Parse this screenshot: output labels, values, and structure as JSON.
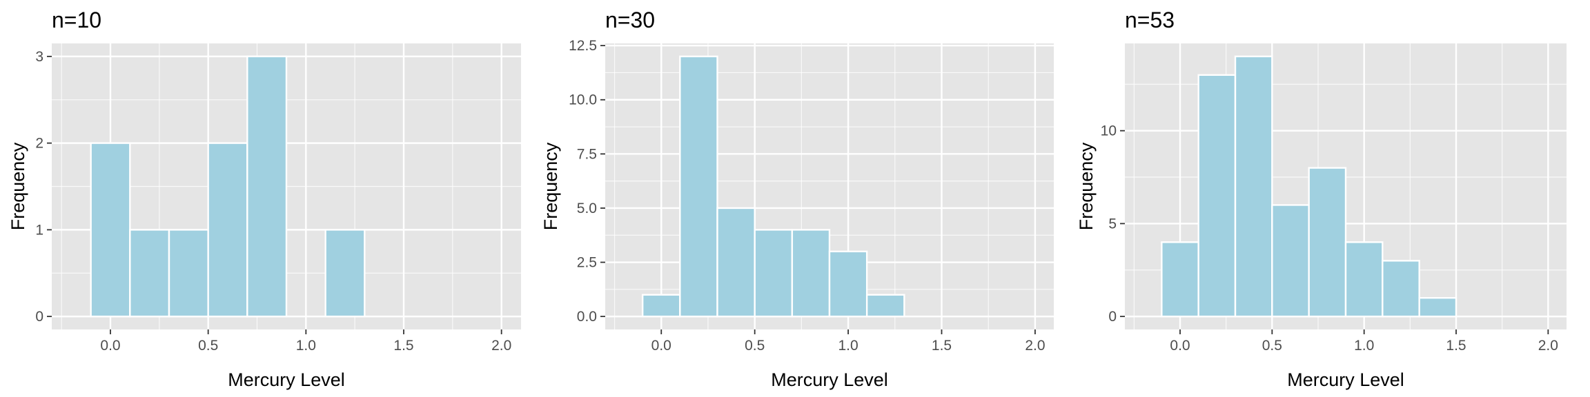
{
  "colors": {
    "panel_background": "#e5e5e5",
    "grid": "#ffffff",
    "bar_fill": "#a0d0e0",
    "bar_outline": "#ffffff",
    "tick_text": "#4d4d4d",
    "tick_mark": "#333333"
  },
  "chart_data": [
    {
      "type": "bar",
      "title": "n=10",
      "xlabel": "Mercury Level",
      "ylabel": "Frequency",
      "bin_width": 0.2,
      "x": [
        0.0,
        0.2,
        0.4,
        0.6,
        0.8,
        1.0,
        1.2,
        1.4,
        1.6,
        1.8,
        2.0
      ],
      "values": [
        2,
        1,
        1,
        2,
        3,
        0,
        1,
        0,
        0,
        0,
        0
      ],
      "xlim": [
        -0.3,
        2.1
      ],
      "ylim": [
        -0.15,
        3.15
      ],
      "xticks": [
        0.0,
        0.5,
        1.0,
        1.5,
        2.0
      ],
      "xtick_labels": [
        "0.0",
        "0.5",
        "1.0",
        "1.5",
        "2.0"
      ],
      "yticks": [
        0,
        1,
        2,
        3
      ],
      "ytick_labels": [
        "0",
        "1",
        "2",
        "3"
      ],
      "ygrid_minor": [
        0.5,
        1.5,
        2.5
      ],
      "grid": true
    },
    {
      "type": "bar",
      "title": "n=30",
      "xlabel": "Mercury Level",
      "ylabel": "Frequency",
      "bin_width": 0.2,
      "x": [
        0.0,
        0.2,
        0.4,
        0.6,
        0.8,
        1.0,
        1.2,
        1.4,
        1.6,
        1.8,
        2.0
      ],
      "values": [
        1,
        12,
        5,
        4,
        4,
        3,
        1,
        0,
        0,
        0,
        0
      ],
      "xlim": [
        -0.3,
        2.1
      ],
      "ylim": [
        -0.6,
        12.6
      ],
      "xticks": [
        0.0,
        0.5,
        1.0,
        1.5,
        2.0
      ],
      "xtick_labels": [
        "0.0",
        "0.5",
        "1.0",
        "1.5",
        "2.0"
      ],
      "yticks": [
        0,
        2.5,
        5,
        7.5,
        10,
        12.5
      ],
      "ytick_labels": [
        "0.0",
        "2.5",
        "5.0",
        "7.5",
        "10.0",
        "12.5"
      ],
      "ygrid_minor": [
        1.25,
        3.75,
        6.25,
        8.75,
        11.25
      ],
      "grid": true
    },
    {
      "type": "bar",
      "title": "n=53",
      "xlabel": "Mercury Level",
      "ylabel": "Frequency",
      "bin_width": 0.2,
      "x": [
        0.0,
        0.2,
        0.4,
        0.6,
        0.8,
        1.0,
        1.2,
        1.4,
        1.6,
        1.8,
        2.0
      ],
      "values": [
        4,
        13,
        14,
        6,
        8,
        4,
        3,
        1,
        0,
        0,
        0
      ],
      "xlim": [
        -0.3,
        2.1
      ],
      "ylim": [
        -0.7,
        14.7
      ],
      "xticks": [
        0.0,
        0.5,
        1.0,
        1.5,
        2.0
      ],
      "xtick_labels": [
        "0.0",
        "0.5",
        "1.0",
        "1.5",
        "2.0"
      ],
      "yticks": [
        0,
        5,
        10
      ],
      "ytick_labels": [
        "0",
        "5",
        "10"
      ],
      "ygrid_minor": [
        2.5,
        7.5,
        12.5
      ],
      "grid": true
    }
  ]
}
